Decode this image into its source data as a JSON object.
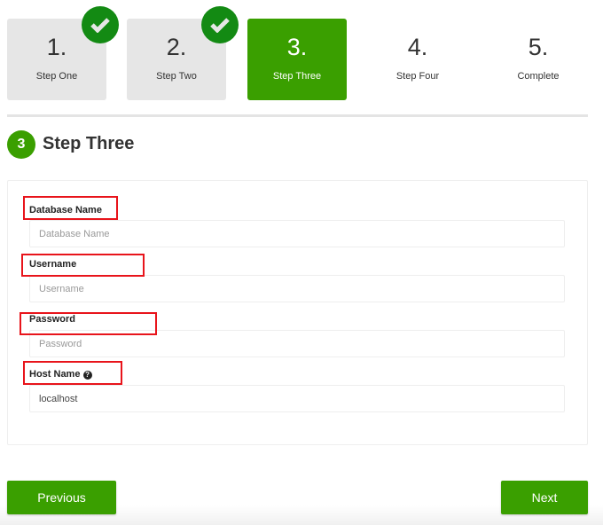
{
  "steps": [
    {
      "number": "1.",
      "label": "Step One",
      "status": "complete"
    },
    {
      "number": "2.",
      "label": "Step Two",
      "status": "complete"
    },
    {
      "number": "3.",
      "label": "Step Three",
      "status": "active"
    },
    {
      "number": "4.",
      "label": "Step Four",
      "status": "pending"
    },
    {
      "number": "5.",
      "label": "Complete",
      "status": "pending"
    }
  ],
  "section": {
    "badge": "3",
    "title": "Step Three"
  },
  "form": {
    "db_name": {
      "label": "Database Name",
      "placeholder": "Database Name",
      "value": ""
    },
    "username": {
      "label": "Username",
      "placeholder": "Username",
      "value": ""
    },
    "password": {
      "label": "Password",
      "placeholder": "Password",
      "value": ""
    },
    "host": {
      "label": "Host Name",
      "value": "localhost",
      "help_icon": "question-circle-icon"
    }
  },
  "buttons": {
    "previous": "Previous",
    "next": "Next"
  },
  "colors": {
    "accent": "#3a9f00",
    "check": "#138a13",
    "highlight": "#e8141b"
  }
}
